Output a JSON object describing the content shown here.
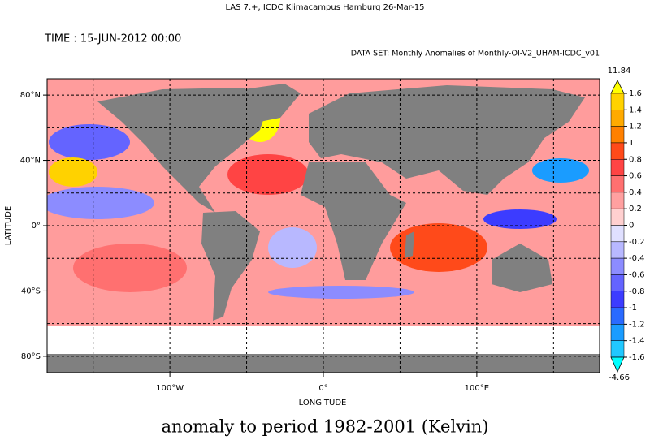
{
  "header": {
    "title": "LAS 7.+, ICDC Klimacampus Hamburg 26-Mar-15",
    "time": "TIME : 15-JUN-2012 00:00",
    "dataset": "DATA SET: Monthly Anomalies of Monthly-OI-V2_UHAM-ICDC_v01"
  },
  "map": {
    "y_label": "LATITUDE",
    "x_label": "LONGITUDE",
    "lat_range": [
      -90,
      90
    ],
    "lon_range": [
      -180,
      180
    ],
    "lat_ticks": [
      {
        "value": 80,
        "label": "80°N"
      },
      {
        "value": 40,
        "label": "40°N"
      },
      {
        "value": 0,
        "label": "0°"
      },
      {
        "value": -40,
        "label": "40°S"
      },
      {
        "value": -80,
        "label": "80°S"
      }
    ],
    "lon_ticks": [
      {
        "value": -100,
        "label": "100°W"
      },
      {
        "value": 0,
        "label": "0°"
      },
      {
        "value": 100,
        "label": "100°E"
      }
    ],
    "lat_grid": [
      80,
      60,
      40,
      20,
      0,
      -20,
      -40,
      -60,
      -80
    ],
    "lon_grid": [
      -150,
      -100,
      -50,
      0,
      50,
      100,
      150
    ]
  },
  "colorbar": {
    "max": 11.84,
    "min": -4.66,
    "levels": [
      1.6,
      1.4,
      1.2,
      1,
      0.8,
      0.6,
      0.4,
      0.2,
      0,
      -0.2,
      -0.4,
      -0.6,
      -0.8,
      -1,
      -1.2,
      -1.4,
      -1.6
    ],
    "colors": [
      "#ffff00",
      "#ffd200",
      "#ffaa00",
      "#ff8000",
      "#ff4a1a",
      "#ff4444",
      "#ff7070",
      "#ffa0a0",
      "#ffd0d0",
      "#e0e0ff",
      "#b8b8ff",
      "#8c8cff",
      "#6464ff",
      "#3c3cff",
      "#2a6aff",
      "#1a9cff",
      "#20c8ff",
      "#00ffff"
    ]
  },
  "footer": {
    "caption": "anomaly to period 1982-2001 (Kelvin)"
  }
}
